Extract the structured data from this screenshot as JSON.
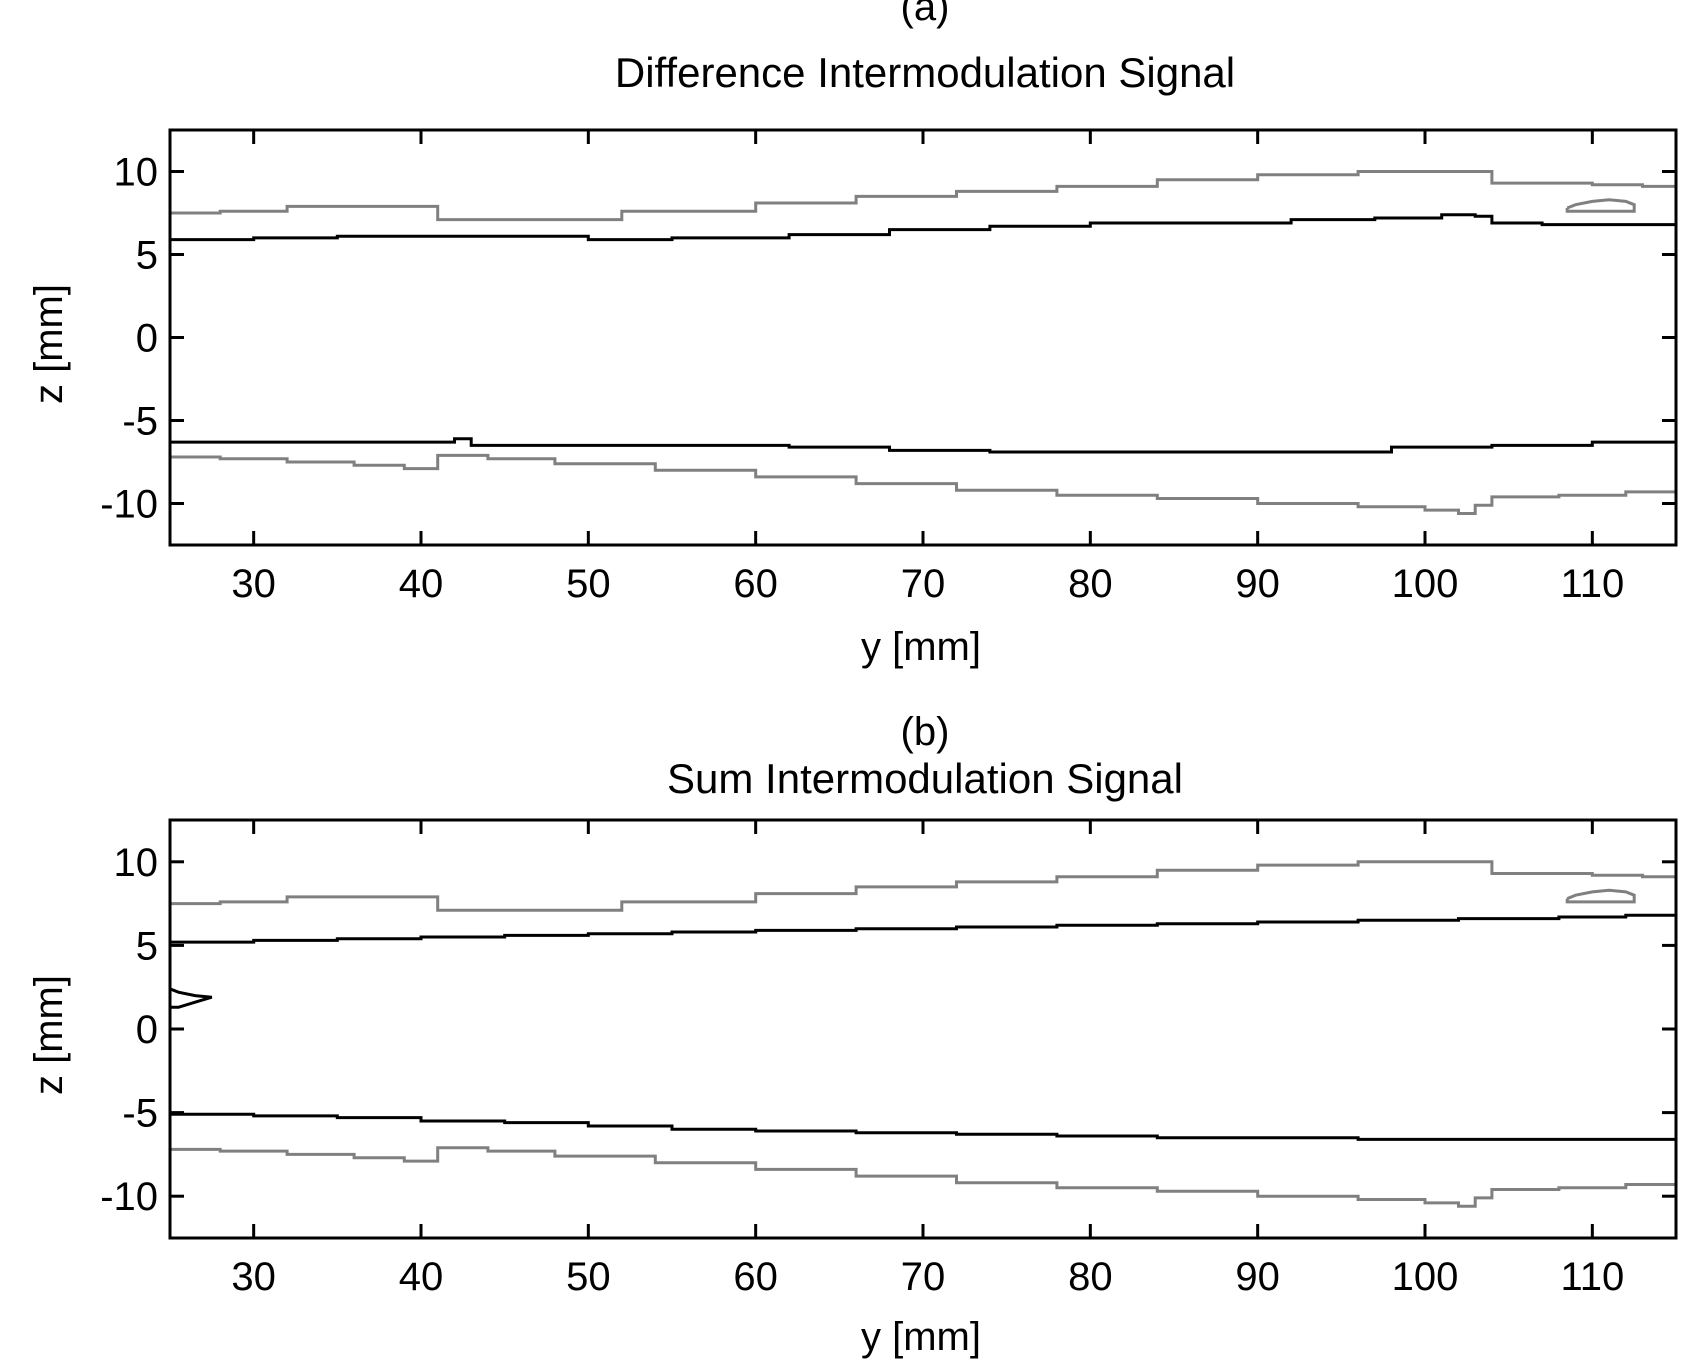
{
  "chart_data": [
    {
      "panel_label": "(a)",
      "title": "Difference Intermodulation Signal",
      "type": "line",
      "xlabel": "y [mm]",
      "ylabel": "z [mm]",
      "xlim": [
        25,
        115
      ],
      "ylim": [
        -12.5,
        12.5
      ],
      "xticks": [
        30,
        40,
        50,
        60,
        70,
        80,
        90,
        100,
        110
      ],
      "yticks": [
        10,
        5,
        0,
        -5,
        -10
      ],
      "grid": false,
      "series": [
        {
          "color": "#808080",
          "style": "step",
          "x": [
            25,
            28,
            32,
            40,
            41,
            46,
            52,
            60,
            66,
            72,
            78,
            84,
            90,
            96,
            103,
            104,
            110,
            113,
            115
          ],
          "y": [
            7.5,
            7.6,
            7.9,
            7.9,
            7.1,
            7.1,
            7.6,
            8.1,
            8.5,
            8.8,
            9.1,
            9.5,
            9.8,
            10.0,
            10.0,
            9.3,
            9.2,
            9.1,
            9.2
          ]
        },
        {
          "color": "#808080",
          "style": "closed",
          "x": [
            108.5,
            109,
            110,
            111,
            112,
            112.5,
            112.5,
            108.5,
            108.5
          ],
          "y": [
            7.8,
            8.0,
            8.2,
            8.3,
            8.2,
            8.0,
            7.6,
            7.6,
            7.8
          ]
        },
        {
          "color": "#000000",
          "style": "step",
          "x": [
            25,
            30,
            35,
            40,
            45,
            50,
            55,
            62,
            68,
            74,
            80,
            86,
            92,
            97,
            101,
            103,
            104,
            107,
            115
          ],
          "y": [
            5.9,
            6.0,
            6.1,
            6.1,
            6.1,
            5.9,
            6.0,
            6.2,
            6.5,
            6.7,
            6.9,
            6.9,
            7.1,
            7.2,
            7.4,
            7.3,
            6.9,
            6.8,
            6.8
          ]
        },
        {
          "color": "#000000",
          "style": "step",
          "x": [
            25,
            35,
            40,
            42,
            43,
            48,
            55,
            62,
            68,
            74,
            80,
            86,
            92,
            98,
            104,
            110,
            115
          ],
          "y": [
            -6.3,
            -6.3,
            -6.3,
            -6.1,
            -6.5,
            -6.5,
            -6.5,
            -6.6,
            -6.8,
            -6.9,
            -6.9,
            -6.9,
            -6.9,
            -6.6,
            -6.5,
            -6.3,
            -6.1
          ]
        },
        {
          "color": "#808080",
          "style": "step",
          "x": [
            25,
            28,
            32,
            36,
            39,
            40,
            41,
            44,
            48,
            54,
            60,
            66,
            72,
            78,
            84,
            90,
            96,
            100,
            102,
            103,
            104,
            108,
            112,
            115
          ],
          "y": [
            -7.2,
            -7.3,
            -7.5,
            -7.7,
            -7.9,
            -7.9,
            -7.1,
            -7.3,
            -7.6,
            -8.0,
            -8.4,
            -8.8,
            -9.2,
            -9.5,
            -9.7,
            -10.0,
            -10.2,
            -10.4,
            -10.6,
            -10.1,
            -9.6,
            -9.5,
            -9.3,
            -9.2
          ]
        }
      ]
    },
    {
      "panel_label": "(b)",
      "title": "Sum Intermodulation Signal",
      "type": "line",
      "xlabel": "y [mm]",
      "ylabel": "z [mm]",
      "xlim": [
        25,
        115
      ],
      "ylim": [
        -12.5,
        12.5
      ],
      "xticks": [
        30,
        40,
        50,
        60,
        70,
        80,
        90,
        100,
        110
      ],
      "yticks": [
        10,
        5,
        0,
        -5,
        -10
      ],
      "grid": false,
      "series": [
        {
          "color": "#808080",
          "style": "step",
          "x": [
            25,
            28,
            32,
            40,
            41,
            46,
            52,
            60,
            66,
            72,
            78,
            84,
            90,
            96,
            103,
            104,
            110,
            113,
            115
          ],
          "y": [
            7.5,
            7.6,
            7.9,
            7.9,
            7.1,
            7.1,
            7.6,
            8.1,
            8.5,
            8.8,
            9.1,
            9.5,
            9.8,
            10.0,
            10.0,
            9.3,
            9.2,
            9.1,
            9.2
          ]
        },
        {
          "color": "#808080",
          "style": "closed",
          "x": [
            108.5,
            109,
            110,
            111,
            112,
            112.5,
            112.5,
            108.5,
            108.5
          ],
          "y": [
            7.8,
            8.0,
            8.2,
            8.3,
            8.2,
            8.0,
            7.6,
            7.6,
            7.8
          ]
        },
        {
          "color": "#000000",
          "style": "step",
          "x": [
            25,
            30,
            35,
            40,
            45,
            50,
            55,
            60,
            66,
            72,
            78,
            84,
            90,
            96,
            102,
            108,
            112,
            115
          ],
          "y": [
            5.2,
            5.3,
            5.4,
            5.5,
            5.6,
            5.7,
            5.8,
            5.9,
            6.0,
            6.1,
            6.2,
            6.3,
            6.4,
            6.5,
            6.6,
            6.7,
            6.8,
            6.8
          ]
        },
        {
          "color": "#000000",
          "style": "closed",
          "x": [
            25,
            25.5,
            26.5,
            27.5,
            26.5,
            25.5,
            25
          ],
          "y": [
            2.4,
            2.2,
            2.0,
            1.9,
            1.6,
            1.3,
            1.3
          ]
        },
        {
          "color": "#000000",
          "style": "step",
          "x": [
            25,
            30,
            35,
            40,
            45,
            50,
            55,
            60,
            66,
            72,
            78,
            84,
            90,
            96,
            102,
            108,
            115
          ],
          "y": [
            -5.1,
            -5.2,
            -5.3,
            -5.5,
            -5.6,
            -5.8,
            -6.0,
            -6.1,
            -6.2,
            -6.3,
            -6.4,
            -6.5,
            -6.5,
            -6.6,
            -6.6,
            -6.6,
            -6.5
          ]
        },
        {
          "color": "#808080",
          "style": "step",
          "x": [
            25,
            28,
            32,
            36,
            39,
            40,
            41,
            44,
            48,
            54,
            60,
            66,
            72,
            78,
            84,
            90,
            96,
            100,
            102,
            103,
            104,
            108,
            112,
            115
          ],
          "y": [
            -7.2,
            -7.3,
            -7.5,
            -7.7,
            -7.9,
            -7.9,
            -7.1,
            -7.3,
            -7.6,
            -8.0,
            -8.4,
            -8.8,
            -9.2,
            -9.5,
            -9.7,
            -10.0,
            -10.2,
            -10.4,
            -10.6,
            -10.1,
            -9.6,
            -9.5,
            -9.3,
            -9.2
          ]
        }
      ]
    }
  ]
}
